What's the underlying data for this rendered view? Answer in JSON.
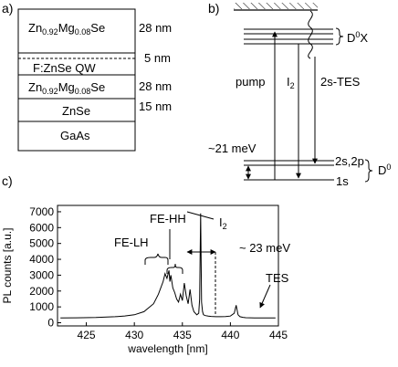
{
  "panel_a": {
    "label": "a)",
    "layers": [
      {
        "name_main": "Zn",
        "sub1": "0.92",
        "name_mid": "Mg",
        "sub2": "0.08",
        "name_end": "Se",
        "thickness": "28 nm"
      },
      {
        "name": "F:ZnSe QW",
        "thickness": "5 nm"
      },
      {
        "name_main": "Zn",
        "sub1": "0.92",
        "name_mid": "Mg",
        "sub2": "0.08",
        "name_end": "Se",
        "thickness": "28 nm"
      },
      {
        "name": "ZnSe",
        "thickness": "15 nm"
      },
      {
        "name": "GaAs",
        "thickness": ""
      }
    ]
  },
  "panel_b": {
    "label": "b)",
    "d0x_label": "D",
    "d0x_sup": "0",
    "d0x_end": "X",
    "pump_label": "pump",
    "i2_label": "I",
    "i2_sub": "2",
    "tes_label": "2s-TES",
    "energy_label": "~21 meV",
    "level_2s2p": "2s,2p",
    "level_1s": "1s",
    "d0_label": "D",
    "d0_sup": "0"
  },
  "panel_c": {
    "label": "c)",
    "ann_fehh": "FE-HH",
    "ann_felh": "FE-LH",
    "ann_i2": "I",
    "ann_i2_sub": "2",
    "ann_23mev": "~ 23 meV",
    "ann_tes": "TES"
  },
  "chart_data": {
    "type": "line",
    "xlabel": "wavelength [nm]",
    "ylabel": "PL counts [a.u.]",
    "xlim": [
      422,
      445
    ],
    "ylim": [
      -200,
      7400
    ],
    "xticks": [
      425,
      430,
      435,
      440,
      445
    ],
    "yticks": [
      0,
      1000,
      2000,
      3000,
      4000,
      5000,
      6000,
      7000
    ],
    "grid": false,
    "series": [
      {
        "x": [
          422.3,
          424,
          426,
          428,
          429,
          430,
          431,
          432,
          432.5,
          433,
          433.2,
          433.4,
          433.6,
          433.7,
          433.8,
          434.0,
          434.2,
          434.4,
          434.6,
          434.8,
          435.0,
          435.2,
          435.4,
          435.6,
          435.8,
          436.0,
          436.2,
          436.5,
          436.7,
          436.8,
          436.9,
          437.0,
          437.1,
          437.2,
          437.4,
          437.7,
          438.0,
          438.5,
          439.0,
          439.5,
          440.0,
          440.4,
          440.6,
          440.8,
          441.0,
          441.3,
          441.6,
          442.5,
          443.5,
          444.7
        ],
        "y": [
          300,
          310,
          330,
          380,
          430,
          500,
          700,
          1200,
          1800,
          2600,
          3100,
          2800,
          3300,
          2600,
          3000,
          2200,
          1900,
          1500,
          1300,
          1800,
          1400,
          2500,
          1700,
          1200,
          2100,
          1100,
          700,
          500,
          600,
          1500,
          6900,
          1300,
          700,
          500,
          450,
          420,
          400,
          380,
          380,
          390,
          420,
          600,
          1100,
          500,
          380,
          340,
          320,
          300,
          300,
          300
        ]
      }
    ]
  }
}
